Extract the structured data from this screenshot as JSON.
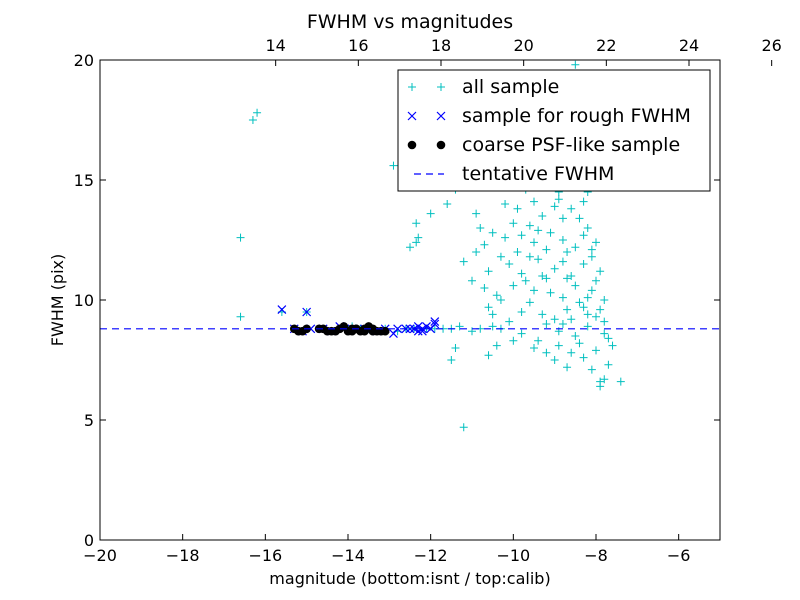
{
  "chart_data": {
    "type": "scatter",
    "title": "FWHM vs magnitudes",
    "xlabel": "magnitude (bottom:isnt / top:calib)",
    "ylabel": "FWHM (pix)",
    "xlim": [
      -20,
      -5
    ],
    "ylim": [
      0,
      20
    ],
    "secondary_x": {
      "label": "calib",
      "offset": 29.75,
      "ticks": [
        14,
        16,
        18,
        20,
        22,
        24,
        26
      ]
    },
    "xticks": [
      -20,
      -18,
      -16,
      -14,
      -12,
      -10,
      -8,
      -6
    ],
    "yticks": [
      0,
      5,
      10,
      15,
      20
    ],
    "grid": false,
    "legend_position": "upper right",
    "colors": {
      "all_sample": "#00bfbf",
      "rough_sample": "#0000ff",
      "coarse_sample": "#000000",
      "tentative": "#0000ff"
    },
    "series": [
      {
        "name": "all sample",
        "marker": "plus",
        "points": [
          [
            -16.6,
            12.6
          ],
          [
            -16.6,
            9.3
          ],
          [
            -16.3,
            17.5
          ],
          [
            -16.2,
            17.8
          ],
          [
            -15.6,
            9.5
          ],
          [
            -15.0,
            9.5
          ],
          [
            -13.9,
            8.9
          ],
          [
            -13.7,
            8.8
          ],
          [
            -13.5,
            8.8
          ],
          [
            -13.1,
            8.8
          ],
          [
            -12.9,
            15.6
          ],
          [
            -12.8,
            8.7
          ],
          [
            -12.6,
            8.8
          ],
          [
            -12.4,
            8.8
          ],
          [
            -12.5,
            12.2
          ],
          [
            -12.35,
            12.4
          ],
          [
            -12.3,
            12.6
          ],
          [
            -12.35,
            13.2
          ],
          [
            -12.0,
            13.6
          ],
          [
            -11.6,
            14.0
          ],
          [
            -11.4,
            14.6
          ],
          [
            -11.3,
            15.0
          ],
          [
            -11.5,
            7.5
          ],
          [
            -11.4,
            8.0
          ],
          [
            -11.2,
            4.7
          ],
          [
            -12.1,
            8.8
          ],
          [
            -11.9,
            8.8
          ],
          [
            -11.7,
            8.8
          ],
          [
            -11.5,
            8.8
          ],
          [
            -11.3,
            8.9
          ],
          [
            -11.0,
            8.7
          ],
          [
            -10.8,
            8.8
          ],
          [
            -10.5,
            8.9
          ],
          [
            -10.3,
            8.8
          ],
          [
            -11.2,
            11.6
          ],
          [
            -11.0,
            10.8
          ],
          [
            -10.9,
            13.6
          ],
          [
            -10.8,
            13.0
          ],
          [
            -10.7,
            12.3
          ],
          [
            -10.6,
            11.2
          ],
          [
            -10.6,
            9.7
          ],
          [
            -10.5,
            12.8
          ],
          [
            -10.4,
            10.2
          ],
          [
            -10.3,
            11.8
          ],
          [
            -10.2,
            14.0
          ],
          [
            -10.1,
            9.1
          ],
          [
            -10.0,
            13.2
          ],
          [
            -10.0,
            10.6
          ],
          [
            -9.9,
            12.0
          ],
          [
            -9.8,
            8.6
          ],
          [
            -9.8,
            11.1
          ],
          [
            -9.7,
            14.6
          ],
          [
            -9.6,
            9.9
          ],
          [
            -9.6,
            13.1
          ],
          [
            -9.5,
            12.4
          ],
          [
            -9.5,
            10.4
          ],
          [
            -9.4,
            8.3
          ],
          [
            -9.4,
            11.7
          ],
          [
            -9.3,
            9.4
          ],
          [
            -9.3,
            13.5
          ],
          [
            -9.2,
            7.8
          ],
          [
            -9.2,
            10.9
          ],
          [
            -9.1,
            12.8
          ],
          [
            -9.0,
            9.2
          ],
          [
            -9.0,
            11.3
          ],
          [
            -8.9,
            14.2
          ],
          [
            -8.9,
            8.1
          ],
          [
            -8.8,
            10.1
          ],
          [
            -8.8,
            12.5
          ],
          [
            -8.7,
            7.2
          ],
          [
            -8.7,
            9.6
          ],
          [
            -8.6,
            13.8
          ],
          [
            -8.6,
            11.0
          ],
          [
            -8.5,
            8.5
          ],
          [
            -8.5,
            12.2
          ],
          [
            -8.4,
            9.9
          ],
          [
            -8.4,
            15.2
          ],
          [
            -8.3,
            7.6
          ],
          [
            -8.3,
            11.5
          ],
          [
            -8.2,
            13.0
          ],
          [
            -8.2,
            8.9
          ],
          [
            -8.1,
            10.4
          ],
          [
            -8.1,
            12.1
          ],
          [
            -8.0,
            7.9
          ],
          [
            -8.0,
            9.3
          ],
          [
            -7.9,
            11.2
          ],
          [
            -7.9,
            6.6
          ],
          [
            -7.8,
            8.6
          ],
          [
            -7.8,
            10.0
          ],
          [
            -7.7,
            7.3
          ],
          [
            -7.6,
            8.1
          ],
          [
            -7.9,
            6.4
          ],
          [
            -7.8,
            6.7
          ],
          [
            -7.4,
            6.6
          ],
          [
            -9.5,
            15.5
          ],
          [
            -9.2,
            16.0
          ],
          [
            -9.0,
            16.6
          ],
          [
            -8.8,
            17.3
          ],
          [
            -8.7,
            17.9
          ],
          [
            -8.5,
            19.8
          ],
          [
            -8.6,
            18.4
          ],
          [
            -9.6,
            16.5
          ],
          [
            -9.4,
            18.2
          ],
          [
            -8.9,
            19.1
          ],
          [
            -8.7,
            16.4
          ],
          [
            -8.4,
            17.1
          ],
          [
            -9.3,
            14.8
          ],
          [
            -9.7,
            17.2
          ],
          [
            -8.8,
            13.4
          ],
          [
            -10.4,
            16.6
          ],
          [
            -10.2,
            15.0
          ],
          [
            -10.8,
            15.8
          ],
          [
            -10.6,
            17.6
          ],
          [
            -9.9,
            16.0
          ],
          [
            -9.1,
            17.0
          ],
          [
            -8.9,
            14.5
          ],
          [
            -8.5,
            14.8
          ],
          [
            -8.3,
            14.1
          ],
          [
            -8.6,
            15.6
          ],
          [
            -9.2,
            12.1
          ],
          [
            -9.6,
            11.8
          ],
          [
            -8.8,
            11.6
          ],
          [
            -8.5,
            10.6
          ],
          [
            -8.3,
            12.7
          ],
          [
            -8.1,
            11.8
          ],
          [
            -8.0,
            10.8
          ],
          [
            -7.9,
            9.6
          ],
          [
            -8.2,
            9.4
          ],
          [
            -8.4,
            8.2
          ],
          [
            -8.6,
            7.8
          ],
          [
            -8.9,
            8.7
          ],
          [
            -9.1,
            10.3
          ],
          [
            -9.4,
            12.9
          ],
          [
            -9.7,
            10.8
          ],
          [
            -9.8,
            12.7
          ],
          [
            -10.1,
            11.5
          ],
          [
            -10.3,
            10.0
          ],
          [
            -10.5,
            9.4
          ],
          [
            -10.7,
            10.5
          ],
          [
            -10.9,
            12.0
          ],
          [
            -10.2,
            12.6
          ],
          [
            -9.9,
            13.8
          ],
          [
            -9.5,
            14.1
          ],
          [
            -9.3,
            11.0
          ],
          [
            -9.0,
            13.9
          ],
          [
            -8.7,
            12.0
          ],
          [
            -8.4,
            13.4
          ],
          [
            -8.2,
            14.5
          ],
          [
            -8.0,
            12.4
          ],
          [
            -7.8,
            9.1
          ],
          [
            -7.7,
            8.4
          ],
          [
            -8.1,
            7.1
          ],
          [
            -8.3,
            9.7
          ],
          [
            -8.7,
            10.9
          ],
          [
            -9.0,
            7.5
          ],
          [
            -9.2,
            9.0
          ],
          [
            -9.5,
            8.0
          ],
          [
            -9.8,
            9.5
          ],
          [
            -10.0,
            8.3
          ],
          [
            -10.4,
            8.1
          ],
          [
            -10.6,
            7.7
          ],
          [
            -8.6,
            9.2
          ],
          [
            -8.8,
            9.0
          ],
          [
            -8.2,
            10.1
          ]
        ]
      },
      {
        "name": "sample for rough FWHM",
        "marker": "x",
        "points": [
          [
            -15.6,
            9.6
          ],
          [
            -15.0,
            9.5
          ],
          [
            -15.3,
            8.8
          ],
          [
            -15.1,
            8.7
          ],
          [
            -14.9,
            8.8
          ],
          [
            -14.6,
            8.8
          ],
          [
            -14.4,
            8.7
          ],
          [
            -14.2,
            8.9
          ],
          [
            -13.9,
            8.8
          ],
          [
            -13.6,
            8.8
          ],
          [
            -13.3,
            8.7
          ],
          [
            -13.1,
            8.8
          ],
          [
            -12.9,
            8.6
          ],
          [
            -12.8,
            8.8
          ],
          [
            -12.6,
            8.8
          ],
          [
            -12.3,
            8.9
          ],
          [
            -12.2,
            8.7
          ],
          [
            -12.3,
            8.7
          ],
          [
            -12.2,
            8.8
          ],
          [
            -12.0,
            8.8
          ],
          [
            -11.9,
            9.0
          ],
          [
            -11.9,
            9.1
          ],
          [
            -12.1,
            8.9
          ],
          [
            -12.4,
            8.8
          ],
          [
            -12.5,
            8.8
          ]
        ]
      },
      {
        "name": "coarse PSF-like sample",
        "marker": "dot",
        "points": [
          [
            -15.3,
            8.8
          ],
          [
            -15.2,
            8.7
          ],
          [
            -15.1,
            8.7
          ],
          [
            -15.0,
            8.8
          ],
          [
            -14.7,
            8.8
          ],
          [
            -14.5,
            8.7
          ],
          [
            -14.4,
            8.7
          ],
          [
            -14.2,
            8.8
          ],
          [
            -14.1,
            8.9
          ],
          [
            -14.0,
            8.7
          ],
          [
            -13.9,
            8.8
          ],
          [
            -13.8,
            8.8
          ],
          [
            -13.7,
            8.7
          ],
          [
            -13.6,
            8.8
          ],
          [
            -13.5,
            8.9
          ],
          [
            -13.4,
            8.8
          ],
          [
            -13.3,
            8.7
          ],
          [
            -13.2,
            8.7
          ],
          [
            -14.3,
            8.7
          ],
          [
            -13.9,
            8.7
          ],
          [
            -13.6,
            8.7
          ],
          [
            -13.4,
            8.7
          ],
          [
            -13.1,
            8.7
          ],
          [
            -14.6,
            8.8
          ],
          [
            -13.8,
            8.8
          ]
        ]
      },
      {
        "name": "tentative FWHM",
        "marker": "dashed-line",
        "y": 8.8
      }
    ]
  }
}
